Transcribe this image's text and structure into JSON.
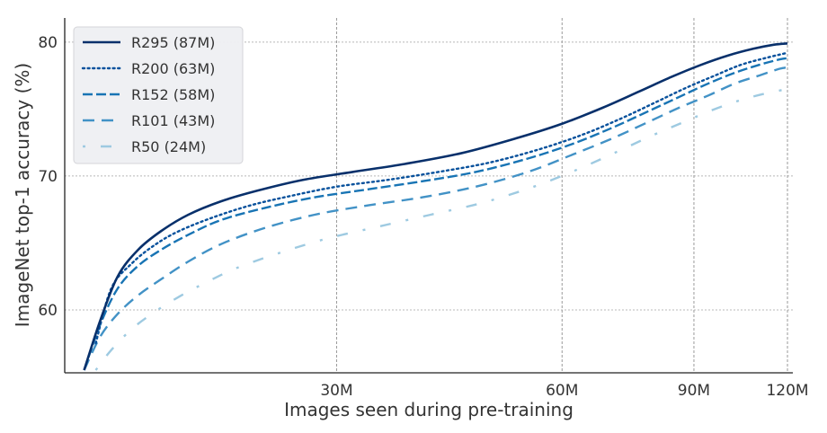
{
  "chart_data": {
    "type": "line",
    "title": "",
    "xlabel": "Images seen during pre-training",
    "ylabel": "ImageNet top-1 accuracy (%)",
    "xscale": "log",
    "xlim": [
      13,
      122
    ],
    "ylim": [
      55.3,
      81.8
    ],
    "xticks": [
      {
        "value": 30,
        "label": "30M"
      },
      {
        "value": 60,
        "label": "60M"
      },
      {
        "value": 90,
        "label": "90M"
      },
      {
        "value": 120,
        "label": "120M"
      }
    ],
    "yticks": [
      {
        "value": 60,
        "label": "60"
      },
      {
        "value": 70,
        "label": "70"
      },
      {
        "value": 80,
        "label": "80"
      }
    ],
    "grid": true,
    "legend_position": "top-left",
    "series": [
      {
        "name": "R295 (87M)",
        "color": "#08306b",
        "dash": "solid",
        "x": [
          13.8,
          14.5,
          15.3,
          16.3,
          17.5,
          19.0,
          21.0,
          23.5,
          27.0,
          31.5,
          37.0,
          44.0,
          52.0,
          60.0,
          68.0,
          76.0,
          84.0,
          92.0,
          100.0,
          108.0,
          115.0,
          120.0
        ],
        "y": [
          55.5,
          59.2,
          62.5,
          64.5,
          65.9,
          67.1,
          68.1,
          68.9,
          69.7,
          70.3,
          70.9,
          71.7,
          72.8,
          73.9,
          75.1,
          76.3,
          77.4,
          78.3,
          79.0,
          79.5,
          79.8,
          79.9
        ]
      },
      {
        "name": "R200 (63M)",
        "color": "#08519c",
        "dash": "dotted",
        "x": [
          14.3,
          15.0,
          16.0,
          17.2,
          18.5,
          20.5,
          23.0,
          26.0,
          30.0,
          35.0,
          41.0,
          48.0,
          56.0,
          64.0,
          72.0,
          80.0,
          88.0,
          96.0,
          104.0,
          112.0,
          120.0
        ],
        "y": [
          57.5,
          61.6,
          63.5,
          64.9,
          65.9,
          66.9,
          67.8,
          68.5,
          69.2,
          69.7,
          70.3,
          71.0,
          72.0,
          73.1,
          74.3,
          75.5,
          76.6,
          77.5,
          78.3,
          78.8,
          79.2
        ]
      },
      {
        "name": "R152 (58M)",
        "color": "#1874b4",
        "dash": "dashed-long",
        "x": [
          13.8,
          14.5,
          15.3,
          16.3,
          17.5,
          19.0,
          21.0,
          24.0,
          28.0,
          33.0,
          39.0,
          46.0,
          54.0,
          62.0,
          70.0,
          78.0,
          86.0,
          94.0,
          102.0,
          110.0,
          117.0,
          120.0
        ],
        "y": [
          55.5,
          58.9,
          61.6,
          63.3,
          64.5,
          65.6,
          66.7,
          67.6,
          68.4,
          69.0,
          69.6,
          70.3,
          71.3,
          72.4,
          73.6,
          74.8,
          75.9,
          76.9,
          77.7,
          78.3,
          78.7,
          78.8
        ]
      },
      {
        "name": "R101 (43M)",
        "color": "#4292c6",
        "dash": "dashed",
        "x": [
          13.8,
          14.5,
          15.3,
          16.3,
          17.5,
          19.0,
          21.0,
          24.0,
          28.0,
          33.0,
          39.0,
          46.0,
          54.0,
          62.0,
          70.0,
          78.0,
          86.0,
          94.0,
          102.0,
          110.0,
          117.0,
          120.0
        ],
        "y": [
          55.5,
          58.0,
          59.7,
          61.1,
          62.3,
          63.6,
          64.9,
          66.1,
          67.1,
          67.8,
          68.4,
          69.2,
          70.3,
          71.6,
          72.8,
          74.0,
          75.1,
          76.0,
          76.9,
          77.5,
          78.0,
          78.1
        ]
      },
      {
        "name": "R50 (24M)",
        "color": "#9ecae1",
        "dash": "dashdot",
        "x": [
          14.3,
          15.0,
          16.0,
          17.2,
          18.5,
          20.0,
          22.0,
          25.0,
          29.0,
          34.0,
          40.0,
          47.0,
          55.0,
          63.0,
          71.0,
          79.0,
          87.0,
          95.0,
          103.0,
          111.0,
          120.0
        ],
        "y": [
          55.5,
          57.0,
          58.6,
          59.9,
          61.0,
          62.0,
          63.1,
          64.2,
          65.3,
          66.2,
          67.1,
          68.0,
          69.2,
          70.5,
          71.8,
          73.0,
          74.0,
          74.9,
          75.6,
          76.1,
          76.5
        ]
      }
    ]
  }
}
